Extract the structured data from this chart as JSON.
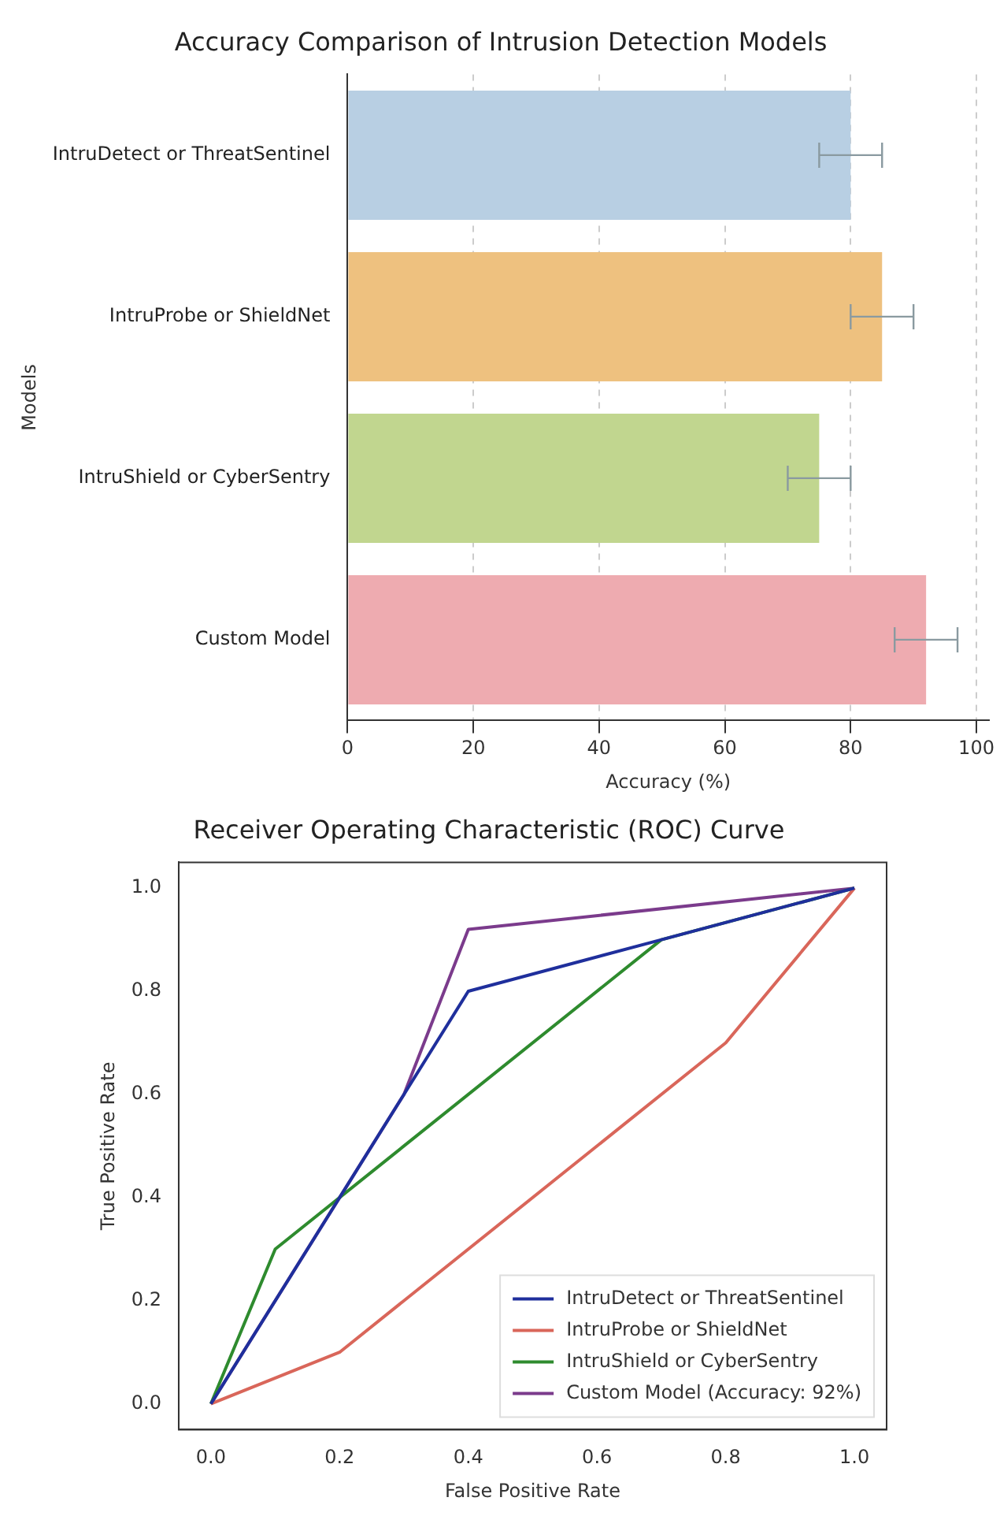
{
  "chart_data": [
    {
      "type": "bar",
      "orientation": "horizontal",
      "title": "Accuracy Comparison of Intrusion Detection Models",
      "xlabel": "Accuracy (%)",
      "ylabel": "Models",
      "categories": [
        "IntruDetect or ThreatSentinel",
        "IntruProbe or ShieldNet",
        "IntruShield or CyberSentry",
        "Custom Model"
      ],
      "values": [
        80,
        85,
        75,
        92
      ],
      "errors": [
        5,
        5,
        5,
        5
      ],
      "colors": [
        "#b8cfe3",
        "#eec17f",
        "#c1d68f",
        "#eeabb0"
      ],
      "xlim": [
        0,
        102
      ],
      "xticks": [
        0,
        20,
        40,
        60,
        80,
        100
      ],
      "grid": "x"
    },
    {
      "type": "line",
      "title": "Receiver Operating Characteristic (ROC) Curve",
      "xlabel": "False Positive Rate",
      "ylabel": "True Positive Rate",
      "xlim": [
        -0.05,
        1.05
      ],
      "ylim": [
        -0.05,
        1.05
      ],
      "xticks": [
        {
          "value": 0,
          "label": "0.0"
        },
        {
          "value": 0.2,
          "label": "0.2"
        },
        {
          "value": 0.4,
          "label": "0.4"
        },
        {
          "value": 0.6,
          "label": "0.6"
        },
        {
          "value": 0.8,
          "label": "0.8"
        },
        {
          "value": 1,
          "label": "1.0"
        }
      ],
      "yticks": [
        {
          "value": 0,
          "label": "0.0"
        },
        {
          "value": 0.2,
          "label": "0.2"
        },
        {
          "value": 0.4,
          "label": "0.4"
        },
        {
          "value": 0.6,
          "label": "0.6"
        },
        {
          "value": 0.8,
          "label": "0.8"
        },
        {
          "value": 1,
          "label": "1.0"
        }
      ],
      "legend": "bottom right",
      "series": [
        {
          "name": "IntruDetect or ThreatSentinel",
          "color": "#1f2f9c",
          "x": [
            0,
            0.2,
            0.4,
            0.7,
            1
          ],
          "values": [
            0,
            0.4,
            0.8,
            0.9,
            1
          ]
        },
        {
          "name": "IntruProbe or ShieldNet",
          "color": "#d9665a",
          "x": [
            0,
            0.2,
            0.8,
            1
          ],
          "values": [
            0,
            0.1,
            0.7,
            1
          ]
        },
        {
          "name": "IntruShield or CyberSentry",
          "color": "#2e8b2e",
          "x": [
            0,
            0.1,
            0.7,
            1
          ],
          "values": [
            0,
            0.3,
            0.9,
            1
          ]
        },
        {
          "name": "Custom Model (Accuracy: 92%)",
          "color": "#7b3b8c",
          "x": [
            0,
            0.3,
            0.4,
            1
          ],
          "values": [
            0,
            0.6,
            0.92,
            1
          ]
        }
      ]
    }
  ]
}
